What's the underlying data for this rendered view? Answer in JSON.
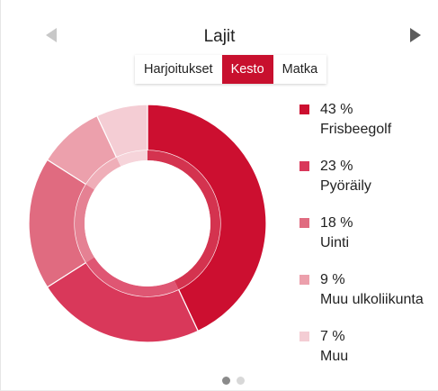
{
  "widget": {
    "title": "Lajit",
    "prev_icon": "triangle-left-icon",
    "next_icon": "triangle-right-icon",
    "tabs": [
      {
        "label": "Harjoitukset",
        "active": false
      },
      {
        "label": "Kesto",
        "active": true
      },
      {
        "label": "Matka",
        "active": false
      }
    ],
    "pagination": {
      "pages": 2,
      "current": 1
    }
  },
  "chart_data": {
    "type": "pie",
    "variant": "donut",
    "values": [
      43,
      23,
      18,
      9,
      7
    ],
    "labels": [
      "Frisbeegolf",
      "Pyöräily",
      "Uinti",
      "Muu ulkoliikunta",
      "Muu"
    ],
    "legend": [
      {
        "pct": "43 %",
        "name": "Frisbeegolf",
        "color": "#cc0f30"
      },
      {
        "pct": "23 %",
        "name": "Pyöräily",
        "color": "#d9385a"
      },
      {
        "pct": "18 %",
        "name": "Uinti",
        "color": "#e06b80"
      },
      {
        "pct": "9 %",
        "name": "Muu ulkoliikunta",
        "color": "#eca0ac"
      },
      {
        "pct": "7 %",
        "name": "Muu",
        "color": "#f4cdd4"
      }
    ],
    "legend_position": "right"
  }
}
